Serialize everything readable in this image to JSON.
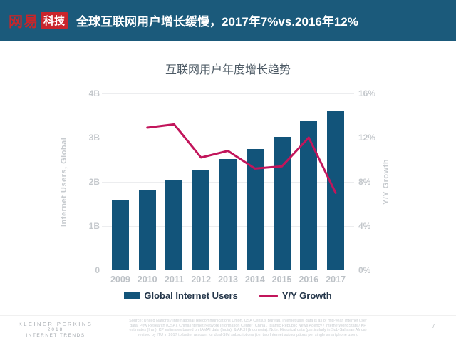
{
  "header": {
    "brand": "网易",
    "badge": "科技",
    "title": "全球互联网用户增长缓慢，2017年7%vs.2016年12%"
  },
  "colors": {
    "header_bg": "#1B5A7B",
    "brand_red": "#C9252C",
    "bar": "#12547A",
    "line": "#C2155B"
  },
  "chart_data": {
    "type": "bar",
    "title": "互联网用户年度增长趋势",
    "categories": [
      "2009",
      "2010",
      "2011",
      "2012",
      "2013",
      "2014",
      "2015",
      "2016",
      "2017"
    ],
    "series": [
      {
        "name": "Global Internet Users",
        "type": "bar",
        "axis": "left",
        "unit": "B",
        "color": "#12547A",
        "values": [
          1.6,
          1.82,
          2.05,
          2.27,
          2.51,
          2.75,
          3.01,
          3.37,
          3.6
        ]
      },
      {
        "name": "Y/Y Growth",
        "type": "line",
        "axis": "right",
        "unit": "%",
        "color": "#C2155B",
        "values": [
          null,
          12.9,
          13.2,
          10.2,
          10.8,
          9.2,
          9.4,
          12.0,
          7.0
        ]
      }
    ],
    "left_axis": {
      "label": "Internet Users, Global",
      "min": 0,
      "max": 4,
      "ticks": [
        "0",
        "1B",
        "2B",
        "3B",
        "4B"
      ]
    },
    "right_axis": {
      "label": "Y/Y Growth",
      "min": 0,
      "max": 16,
      "ticks": [
        "0%",
        "4%",
        "8%",
        "12%",
        "16%"
      ]
    },
    "grid": true,
    "legend_position": "bottom"
  },
  "footer": {
    "branding": {
      "line1": "KLEINER PERKINS",
      "line2": "2018",
      "line3": "INTERNET TRENDS"
    },
    "source_lines": [
      "Source: United Nations / International Telecommunications Union, USA Census Bureau. Internet user data is as of mid-year. Internet user",
      "data: Pew Research (USA), China Internet Network Information Center (China), Islamic Republic News Agency / InternetWorldStats / KP",
      "estimates (Iran), KP estimates based on IAMAI data (India), & APJII (Indonesia). Note: Historical data (particularly in Sub-Saharan Africa)",
      "revised by ITU in 2017 to better account for dual-SIM subscriptions (i.e. two Internet subscriptions per single smartphone user)."
    ],
    "page": "7"
  }
}
